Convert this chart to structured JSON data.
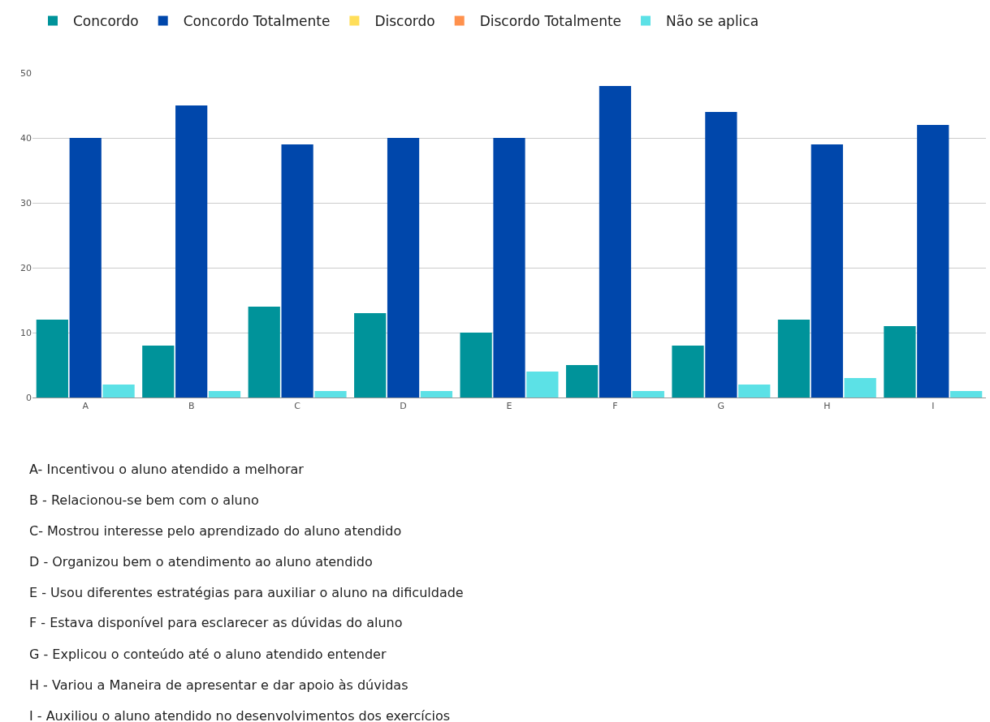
{
  "chart_data": {
    "type": "bar",
    "categories": [
      "A",
      "B",
      "C",
      "D",
      "E",
      "F",
      "G",
      "H",
      "I"
    ],
    "series": [
      {
        "name": "Concordo",
        "color": "#00939a",
        "values": [
          12,
          8,
          14,
          13,
          10,
          5,
          8,
          12,
          11
        ]
      },
      {
        "name": "Concordo Totalmente",
        "color": "#0047ab",
        "values": [
          40,
          45,
          39,
          40,
          40,
          48,
          44,
          39,
          42
        ]
      },
      {
        "name": "Discordo",
        "color": "#ffde59",
        "values": [
          null,
          null,
          null,
          null,
          null,
          null,
          null,
          null,
          null
        ]
      },
      {
        "name": "Discordo Totalmente",
        "color": "#ff914d",
        "values": [
          null,
          null,
          null,
          null,
          null,
          null,
          null,
          null,
          null
        ]
      },
      {
        "name": "Não se aplica",
        "color": "#5ce1e6",
        "values": [
          2,
          1,
          1,
          1,
          4,
          1,
          2,
          3,
          1
        ]
      }
    ],
    "ylim": [
      0,
      50
    ],
    "yticks": [
      0,
      10,
      20,
      30,
      40,
      50
    ],
    "grid": "y",
    "legend": "top",
    "annotations": [
      "A- Incentivou o aluno atendido a melhorar",
      "B - Relacionou-se bem com o aluno",
      "C- Mostrou interesse pelo aprendizado do aluno atendido",
      "D - Organizou bem o atendimento ao aluno atendido",
      "E - Usou diferentes estratégias para auxiliar o aluno na dificuldade",
      "F - Estava disponível para esclarecer as dúvidas do aluno",
      "G - Explicou o conteúdo até o aluno atendido entender",
      "H - Variou a Maneira de apresentar e dar apoio às dúvidas",
      "I - Auxiliou o aluno atendido no desenvolvimentos dos exercícios"
    ]
  }
}
